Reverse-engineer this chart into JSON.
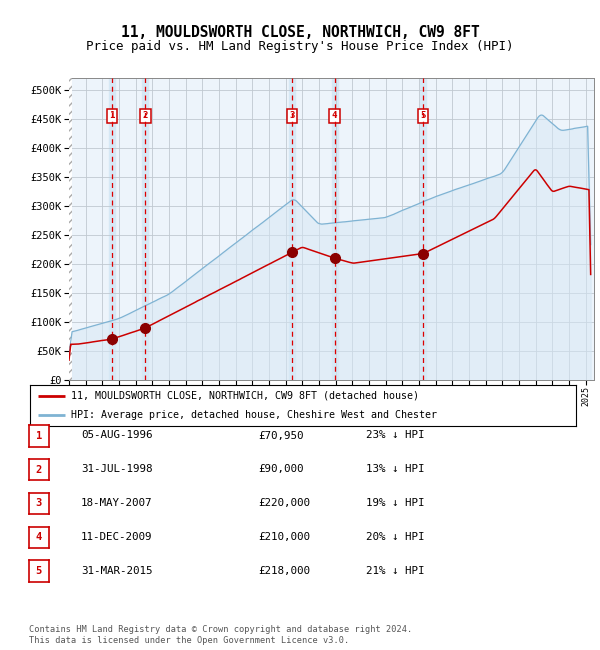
{
  "title": "11, MOULDSWORTH CLOSE, NORTHWICH, CW9 8FT",
  "subtitle": "Price paid vs. HM Land Registry's House Price Index (HPI)",
  "xlim": [
    1994.0,
    2025.5
  ],
  "ylim": [
    0,
    520000
  ],
  "yticks": [
    0,
    50000,
    100000,
    150000,
    200000,
    250000,
    300000,
    350000,
    400000,
    450000,
    500000
  ],
  "ytick_labels": [
    "£0",
    "£50K",
    "£100K",
    "£150K",
    "£200K",
    "£250K",
    "£300K",
    "£350K",
    "£400K",
    "£450K",
    "£500K"
  ],
  "sale_dates_x": [
    1996.59,
    1998.58,
    2007.38,
    2009.94,
    2015.25
  ],
  "sale_prices_y": [
    70950,
    90000,
    220000,
    210000,
    218000
  ],
  "sale_labels": [
    "1",
    "2",
    "3",
    "4",
    "5"
  ],
  "vline_color": "#dd0000",
  "sale_dot_color": "#8b0000",
  "hpi_line_color": "#7fb3d3",
  "hpi_fill_color": "#d6e8f5",
  "price_line_color": "#cc0000",
  "bg_color": "#edf4fb",
  "grid_color": "#c0c8d0",
  "legend_entries": [
    "11, MOULDSWORTH CLOSE, NORTHWICH, CW9 8FT (detached house)",
    "HPI: Average price, detached house, Cheshire West and Chester"
  ],
  "table_rows": [
    [
      "1",
      "05-AUG-1996",
      "£70,950",
      "23% ↓ HPI"
    ],
    [
      "2",
      "31-JUL-1998",
      "£90,000",
      "13% ↓ HPI"
    ],
    [
      "3",
      "18-MAY-2007",
      "£220,000",
      "19% ↓ HPI"
    ],
    [
      "4",
      "11-DEC-2009",
      "£210,000",
      "20% ↓ HPI"
    ],
    [
      "5",
      "31-MAR-2015",
      "£218,000",
      "21% ↓ HPI"
    ]
  ],
  "footnote": "Contains HM Land Registry data © Crown copyright and database right 2024.\nThis data is licensed under the Open Government Licence v3.0.",
  "title_fontsize": 10.5,
  "subtitle_fontsize": 9
}
